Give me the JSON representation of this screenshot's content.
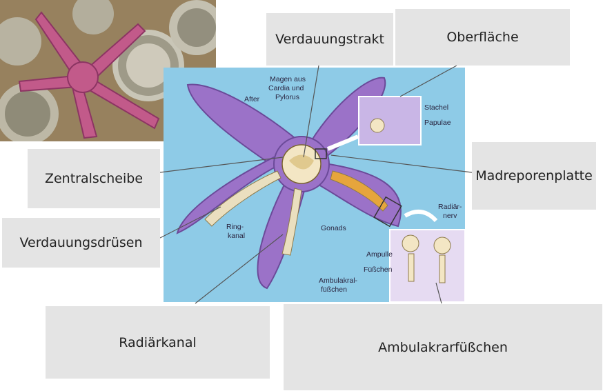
{
  "labels": {
    "verdauungstrakt": "Verdauungstrakt",
    "oberflaeche": "Oberfläche",
    "zentralscheibe": "Zentralscheibe",
    "madreporenplatte": "Madreporenplatte",
    "verdauungsdruesen": "Verdauungsdrüsen",
    "radiaerkanal": "Radiärkanal",
    "ambulakrarfuesschen": "Ambulakrarfüßchen"
  },
  "diagram_labels": {
    "magen_line1": "Magen aus",
    "magen_line2": "Cardia und",
    "magen_line3": "Pylorus",
    "after": "After",
    "stachel": "Stachel",
    "papulae": "Papulae",
    "ring_line1": "Ring-",
    "ring_line2": "kanal",
    "gonads": "Gonads",
    "radiaer_line1": "Radiär-",
    "radiaer_line2": "nerv",
    "ampulle": "Ampulle",
    "fuesschen": "Füßchen",
    "ambulakral_line1": "Ambulakral-",
    "ambulakral_line2": "füßchen"
  },
  "colors": {
    "starfish_photo": "#c25a8a",
    "diagram_bg": "#7fc3e3",
    "starfish_body": "#9b72c8",
    "label_box": "#e4e4e4"
  }
}
